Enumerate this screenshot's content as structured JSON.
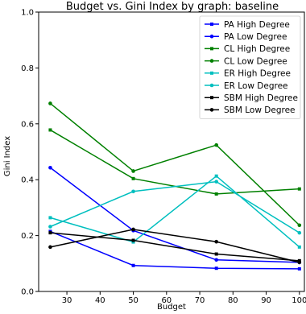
{
  "chart_data": {
    "type": "line",
    "title": "Budget vs. Gini Index by graph: baseline",
    "xlabel": "Budget",
    "ylabel": "Gini Index",
    "x": [
      25,
      50,
      75,
      100
    ],
    "xlim": [
      21.5,
      101.5
    ],
    "ylim": [
      0.0,
      1.0
    ],
    "xticks": [
      30,
      40,
      50,
      60,
      70,
      80,
      90,
      100
    ],
    "yticks": [
      0.0,
      0.2,
      0.4,
      0.6,
      0.8,
      1.0
    ],
    "legend_position": "top-right",
    "grid": false,
    "series": [
      {
        "name": "PA High Degree",
        "color": "#0000ff",
        "marker": "square",
        "values": [
          0.215,
          0.093,
          0.083,
          0.081
        ]
      },
      {
        "name": "PA Low Degree",
        "color": "#0000ff",
        "marker": "circle",
        "values": [
          0.443,
          0.218,
          0.113,
          0.104
        ]
      },
      {
        "name": "CL High Degree",
        "color": "#008000",
        "marker": "square",
        "values": [
          0.578,
          0.404,
          0.349,
          0.367
        ]
      },
      {
        "name": "CL Low Degree",
        "color": "#008000",
        "marker": "circle",
        "values": [
          0.673,
          0.431,
          0.524,
          0.237
        ]
      },
      {
        "name": "ER High Degree",
        "color": "#00bfbf",
        "marker": "square",
        "values": [
          0.264,
          0.177,
          0.413,
          0.159
        ]
      },
      {
        "name": "ER Low Degree",
        "color": "#00bfbf",
        "marker": "circle",
        "values": [
          0.232,
          0.358,
          0.393,
          0.21
        ]
      },
      {
        "name": "SBM High Degree",
        "color": "#000000",
        "marker": "square",
        "values": [
          0.21,
          0.183,
          0.134,
          0.11
        ]
      },
      {
        "name": "SBM Low Degree",
        "color": "#000000",
        "marker": "circle",
        "values": [
          0.159,
          0.222,
          0.178,
          0.104
        ]
      }
    ]
  }
}
